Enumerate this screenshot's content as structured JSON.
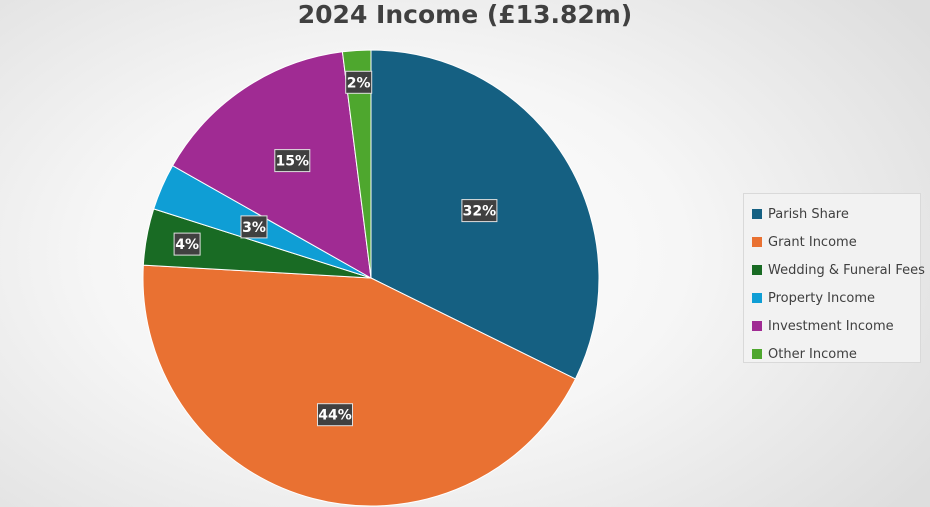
{
  "chart_data": {
    "type": "pie",
    "title": "2024 Income (£13.82m)",
    "labels": [
      "Parish Share",
      "Grant Income",
      "Wedding & Funeral Fees",
      "Property Income",
      "Investment Income",
      "Other Income"
    ],
    "values": [
      32.3,
      43.6,
      4.0,
      3.3,
      14.8,
      2.0
    ],
    "data_labels": [
      "32%",
      "44%",
      "4%",
      "3%",
      "15%",
      "2%"
    ],
    "colors": [
      "#156082",
      "#E97132",
      "#196B24",
      "#0F9ED5",
      "#A02B93",
      "#4EA72E"
    ],
    "legend_position": "right"
  }
}
